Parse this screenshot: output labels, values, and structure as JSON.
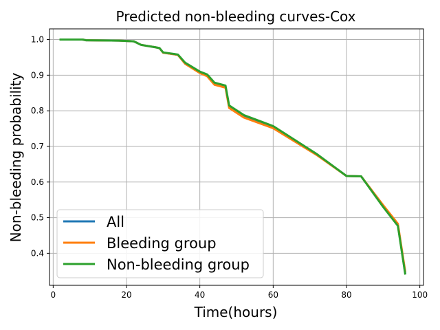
{
  "chart_data": {
    "type": "line",
    "title": "Predicted non-bleeding curves-Cox",
    "xlabel": "Time(hours)",
    "ylabel": "Non-bleeding probability",
    "xlim": [
      -1,
      101
    ],
    "ylim": [
      0.31,
      1.03
    ],
    "xticks": [
      0,
      20,
      40,
      60,
      80,
      100
    ],
    "yticks": [
      0.4,
      0.5,
      0.6,
      0.7,
      0.8,
      0.9,
      1.0
    ],
    "xtick_labels": [
      "0",
      "20",
      "40",
      "60",
      "80",
      "100"
    ],
    "ytick_labels": [
      "0.4",
      "0.5",
      "0.6",
      "0.7",
      "0.8",
      "0.9",
      "1.0"
    ],
    "grid": true,
    "legend_position": "lower-left",
    "series": [
      {
        "name": "All",
        "color": "#1f77b4",
        "x": [
          2,
          8,
          9,
          18,
          22,
          24,
          28,
          29,
          30,
          34,
          36,
          40,
          42,
          44,
          47,
          48,
          52,
          60,
          72,
          80,
          84,
          90,
          94,
          96
        ],
        "y": [
          1.0,
          1.0,
          0.998,
          0.997,
          0.995,
          0.985,
          0.978,
          0.976,
          0.963,
          0.957,
          0.933,
          0.908,
          0.9,
          0.876,
          0.868,
          0.812,
          0.785,
          0.755,
          0.677,
          0.617,
          0.616,
          0.533,
          0.48,
          0.345
        ]
      },
      {
        "name": "Bleeding group",
        "color": "#ff7f0e",
        "x": [
          2,
          8,
          9,
          18,
          22,
          24,
          28,
          29,
          30,
          34,
          36,
          40,
          42,
          44,
          47,
          48,
          52,
          60,
          72,
          80,
          84,
          90,
          94,
          96
        ],
        "y": [
          1.0,
          1.0,
          0.998,
          0.997,
          0.995,
          0.985,
          0.978,
          0.976,
          0.963,
          0.957,
          0.932,
          0.906,
          0.897,
          0.873,
          0.865,
          0.808,
          0.781,
          0.751,
          0.675,
          0.617,
          0.616,
          0.535,
          0.483,
          0.35
        ]
      },
      {
        "name": "Non-bleeding group",
        "color": "#2ca02c",
        "x": [
          2,
          8,
          9,
          18,
          22,
          24,
          28,
          29,
          30,
          34,
          36,
          40,
          42,
          44,
          47,
          48,
          52,
          60,
          72,
          80,
          84,
          90,
          94,
          96
        ],
        "y": [
          1.0,
          1.0,
          0.998,
          0.997,
          0.995,
          0.985,
          0.978,
          0.976,
          0.964,
          0.958,
          0.935,
          0.91,
          0.902,
          0.879,
          0.871,
          0.815,
          0.788,
          0.757,
          0.678,
          0.617,
          0.616,
          0.53,
          0.477,
          0.343
        ]
      }
    ]
  }
}
